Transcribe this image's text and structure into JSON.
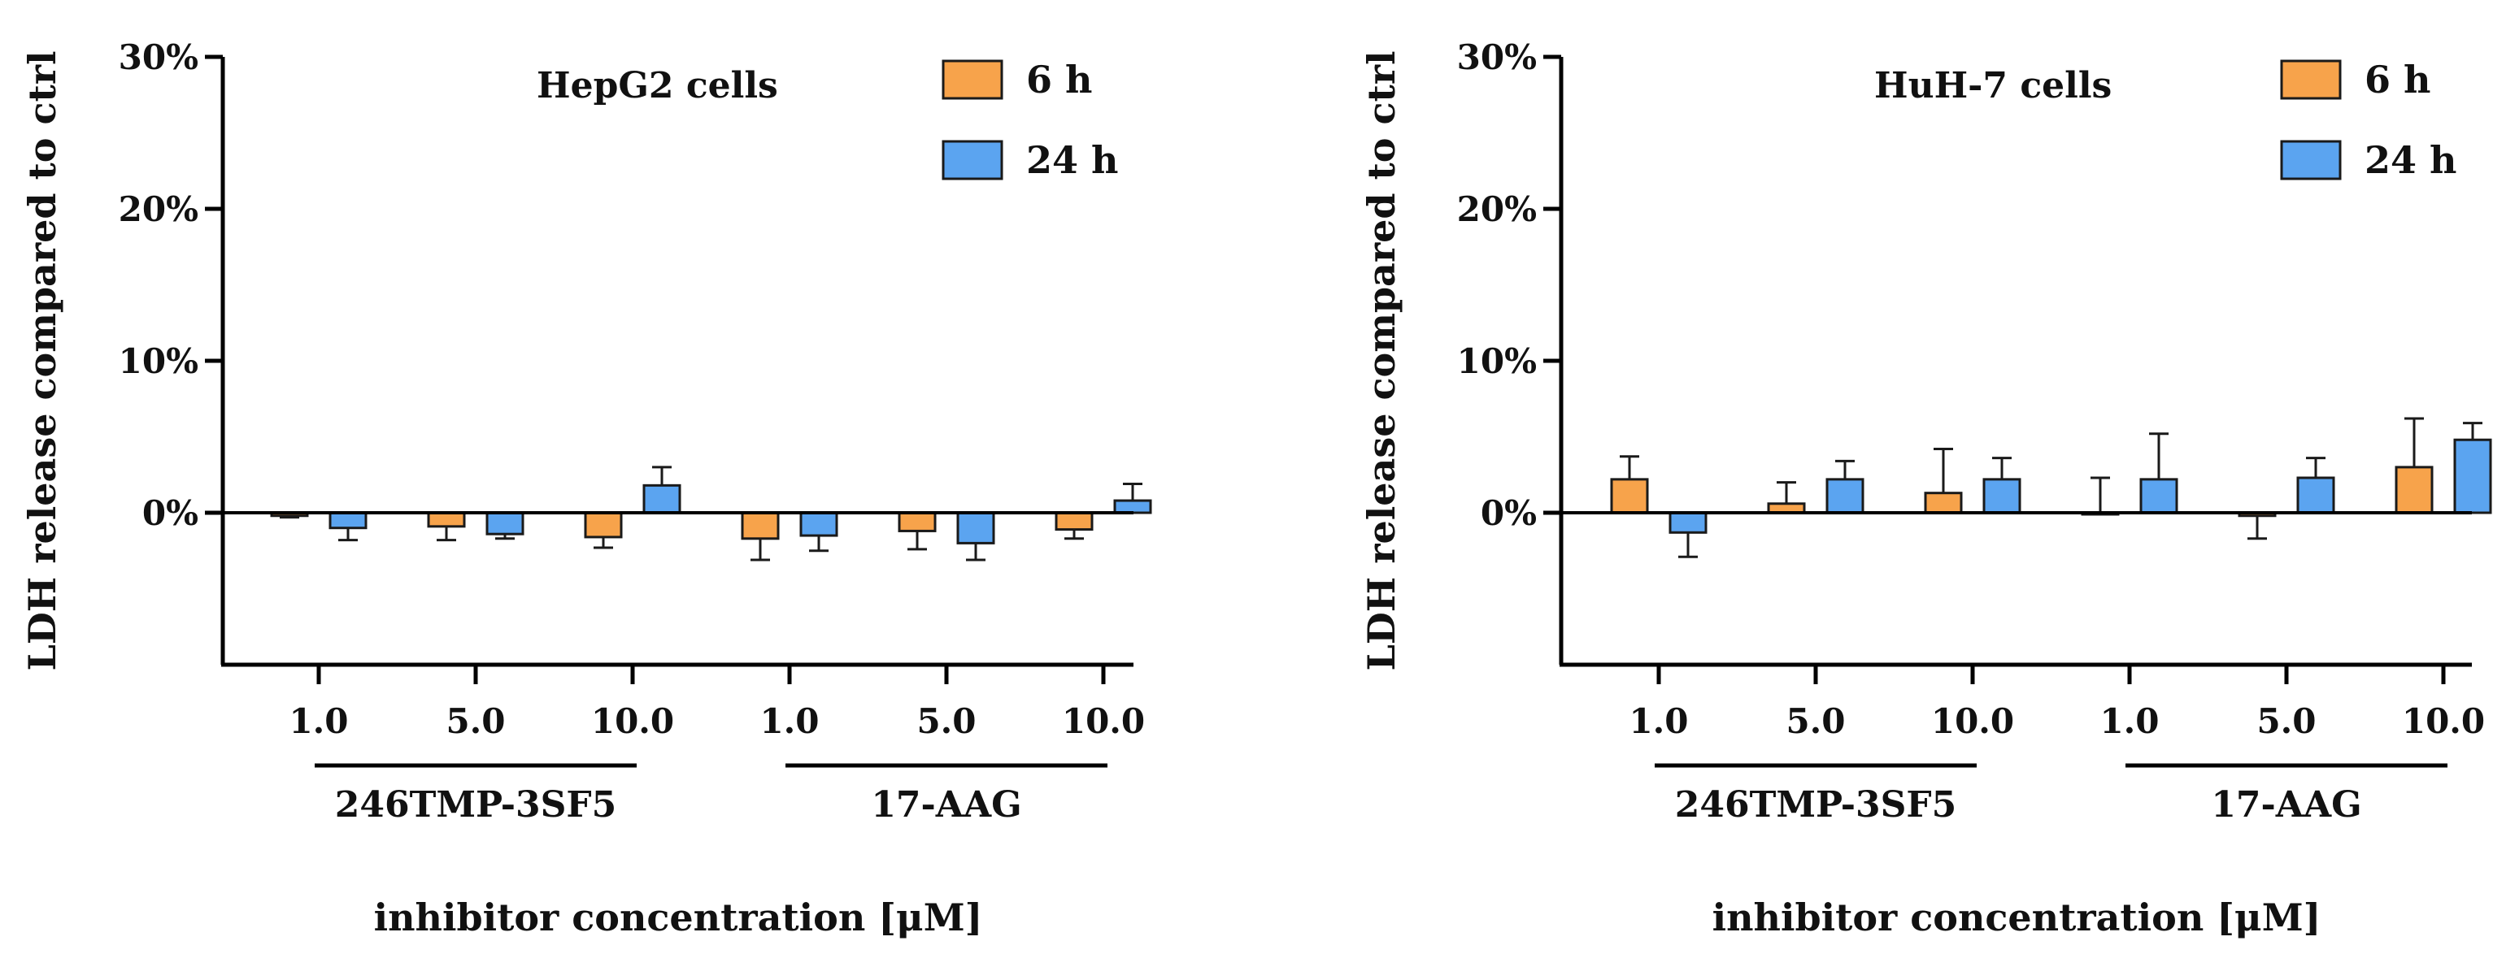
{
  "chart_data": [
    {
      "type": "bar",
      "title": "HepG2 cells",
      "ylabel": "LDH release compared to ctrl",
      "xlabel": "inhibitor concentration [μM]",
      "ylim": [
        -0.1,
        0.3
      ],
      "yticks": [
        0,
        0.1,
        0.2,
        0.3
      ],
      "ytick_labels": [
        "0%",
        "10%",
        "20%",
        "30%"
      ],
      "categories": [
        "1.0",
        "5.0",
        "10.0",
        "1.0",
        "5.0",
        "10.0"
      ],
      "groups": [
        {
          "label": "246TMP-3SF5",
          "start": 0,
          "end": 2
        },
        {
          "label": "17-AAG",
          "start": 3,
          "end": 5
        }
      ],
      "legend": {
        "position": "top-right"
      },
      "series": [
        {
          "name": "6 h",
          "color": "#F7A34B",
          "values": [
            -0.002,
            -0.009,
            -0.016,
            -0.017,
            -0.012,
            -0.011
          ],
          "errors": [
            0.001,
            0.009,
            0.007,
            0.014,
            0.012,
            0.006
          ]
        },
        {
          "name": "24 h",
          "color": "#5BA4F0",
          "values": [
            -0.01,
            -0.014,
            0.018,
            -0.015,
            -0.02,
            0.008
          ],
          "errors": [
            0.008,
            0.003,
            0.012,
            0.01,
            0.011,
            0.011
          ]
        }
      ]
    },
    {
      "type": "bar",
      "title": "HuH-7 cells",
      "ylabel": "LDH release compared to ctrl",
      "xlabel": "inhibitor concentration [μM]",
      "ylim": [
        -0.1,
        0.3
      ],
      "yticks": [
        0,
        0.1,
        0.2,
        0.3
      ],
      "ytick_labels": [
        "0%",
        "10%",
        "20%",
        "30%"
      ],
      "categories": [
        "1.0",
        "5.0",
        "10.0",
        "1.0",
        "5.0",
        "10.0"
      ],
      "groups": [
        {
          "label": "246TMP-3SF5",
          "start": 0,
          "end": 2
        },
        {
          "label": "17-AAG",
          "start": 3,
          "end": 5
        }
      ],
      "legend": {
        "position": "top-right"
      },
      "series": [
        {
          "name": "6 h",
          "color": "#F7A34B",
          "values": [
            0.022,
            0.006,
            0.013,
            0.0,
            -0.002,
            0.03
          ],
          "errors": [
            0.015,
            0.014,
            0.029,
            0.023,
            0.015,
            0.032
          ]
        },
        {
          "name": "24 h",
          "color": "#5BA4F0",
          "values": [
            -0.013,
            0.022,
            0.022,
            0.022,
            0.023,
            0.048
          ],
          "errors": [
            0.016,
            0.012,
            0.014,
            0.03,
            0.013,
            0.011
          ]
        }
      ]
    }
  ]
}
